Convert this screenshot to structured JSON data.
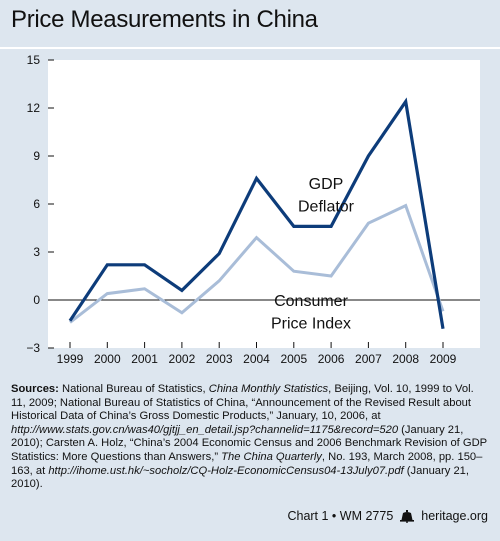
{
  "title": "Price Measurements in China",
  "chart_data": {
    "type": "line",
    "categories": [
      "1999",
      "2000",
      "2001",
      "2002",
      "2003",
      "2004",
      "2005",
      "2006",
      "2007",
      "2008",
      "2009"
    ],
    "series": [
      {
        "name": "GDP Deflator",
        "name_lines": [
          "GDP",
          "Deflator"
        ],
        "color": "#0d3c7a",
        "values": [
          -1.3,
          2.2,
          2.2,
          0.6,
          2.9,
          7.6,
          4.6,
          4.6,
          9.0,
          12.4,
          -1.8
        ]
      },
      {
        "name": "Consumer Price Index",
        "name_lines": [
          "Consumer",
          "Price Index"
        ],
        "color": "#a9bdd8",
        "values": [
          -1.4,
          0.4,
          0.7,
          -0.8,
          1.2,
          3.9,
          1.8,
          1.5,
          4.8,
          5.9,
          -0.7
        ]
      }
    ],
    "yticks": [
      "15",
      "12",
      "9",
      "6",
      "3",
      "0",
      "−3"
    ],
    "ylim": [
      -3,
      15
    ],
    "grid": false
  },
  "sources": {
    "label": "Sources:",
    "t1": " National Bureau of Statistics, ",
    "i1": "China Monthly Statistics",
    "t2": ", Beijing, Vol. 10, 1999 to Vol. 11, 2009; National Bureau of Statistics of China, “Announcement of the Revised Result about Historical Data of China’s Gross Domestic Products,” January, 10, 2006, at ",
    "i2": "http://www.stats.gov.cn/was40/gjtjj_en_detail.jsp?channelid=1175&record=520",
    "t3": " (January 21, 2010); Carsten A. Holz, “China’s 2004 Economic Census and 2006 Benchmark Revision of GDP Statistics: More Questions than Answers,” ",
    "i3": "The China Quarterly",
    "t4": ", No. 193, March 2008, pp. 150–163, at ",
    "i4": "http://ihome.ust.hk/~socholz/CQ-Holz-EconomicCensus04-13July07.pdf",
    "t5": " (January 21, 2010)."
  },
  "footer": {
    "chart_id": "Chart 1 • WM 2775",
    "site": "heritage.org",
    "bell_icon": "liberty-bell-icon"
  }
}
